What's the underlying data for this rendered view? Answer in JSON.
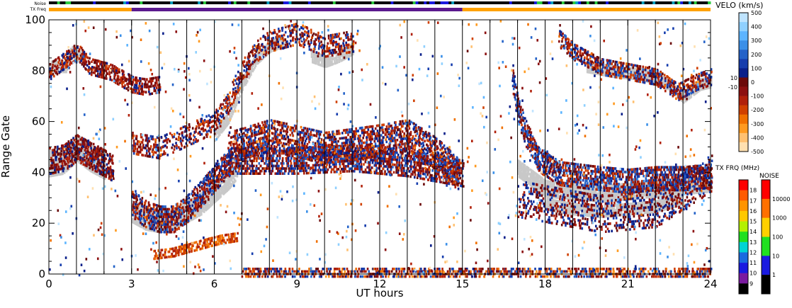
{
  "top_bars": {
    "noise_label": "Noise",
    "txfreq_label": "TX Freq",
    "noise_colors": [
      "#000000",
      "#1a1adf",
      "#00a0c0",
      "#2ecc40",
      "#000000"
    ],
    "txfreq_segments": [
      {
        "from": 0,
        "to": 3,
        "color": "#ffa200"
      },
      {
        "from": 3,
        "to": 15,
        "color": "#5b1a8e"
      },
      {
        "from": 15,
        "to": 24,
        "color": "#ffa200"
      }
    ]
  },
  "chart_data": {
    "type": "heatmap",
    "title": "",
    "xlabel": "UT hours",
    "ylabel": "Range Gate",
    "xlim": [
      0,
      24
    ],
    "ylim": [
      0,
      100
    ],
    "x_ticks": [
      "0",
      "3",
      "6",
      "9",
      "12",
      "15",
      "18",
      "21",
      "24"
    ],
    "y_ticks": [
      "0",
      "20",
      "40",
      "60",
      "80",
      "100"
    ],
    "scan_lines_ut": [
      1,
      2,
      3,
      4,
      5,
      6,
      7,
      8,
      9,
      10,
      11,
      12,
      13,
      14,
      15,
      16,
      17,
      18,
      19,
      20,
      21,
      22,
      23
    ],
    "ground_scatter_color": "#c8c8c8",
    "scatter_regions": [
      {
        "name": "band-a",
        "points": [
          [
            0,
            80
          ],
          [
            0.5,
            84
          ],
          [
            1.0,
            88
          ],
          [
            1.5,
            82
          ],
          [
            2.2,
            80
          ],
          [
            3.0,
            75
          ],
          [
            3.5,
            74
          ],
          [
            4.0,
            75
          ]
        ],
        "width": 6,
        "density": 0.5,
        "vel": [
          -200,
          80
        ]
      },
      {
        "name": "band-b",
        "points": [
          [
            0,
            45
          ],
          [
            0.5,
            46
          ],
          [
            1.0,
            50
          ],
          [
            1.5,
            47
          ],
          [
            2.0,
            44
          ],
          [
            2.3,
            42
          ]
        ],
        "width": 10,
        "density": 0.55,
        "vel": [
          -150,
          80
        ]
      },
      {
        "name": "band-c",
        "points": [
          [
            3.0,
            28
          ],
          [
            3.5,
            24
          ],
          [
            4.0,
            22
          ],
          [
            4.5,
            22
          ],
          [
            5.0,
            26
          ],
          [
            5.5,
            32
          ],
          [
            6.0,
            38
          ],
          [
            6.3,
            42
          ],
          [
            6.6,
            45
          ],
          [
            7.5,
            45
          ],
          [
            9,
            45
          ],
          [
            11,
            46
          ],
          [
            13,
            44
          ],
          [
            15,
            40
          ]
        ],
        "width": 10,
        "density": 0.5,
        "vel": [
          -200,
          200
        ]
      },
      {
        "name": "band-d",
        "points": [
          [
            3.0,
            52
          ],
          [
            4.0,
            50
          ],
          [
            5.0,
            55
          ],
          [
            6.0,
            60
          ],
          [
            6.5,
            68
          ],
          [
            7.0,
            80
          ],
          [
            7.5,
            88
          ],
          [
            8.0,
            92
          ],
          [
            9,
            95
          ],
          [
            10,
            90
          ],
          [
            11,
            92
          ]
        ],
        "width": 8,
        "density": 0.35,
        "vel": [
          -250,
          150
        ]
      },
      {
        "name": "band-e",
        "points": [
          [
            6.5,
            50
          ],
          [
            8,
            55
          ],
          [
            10,
            50
          ],
          [
            12,
            53
          ],
          [
            13,
            55
          ],
          [
            14,
            48
          ],
          [
            14.8,
            40
          ]
        ],
        "width": 12,
        "density": 0.45,
        "vel": [
          -250,
          200
        ]
      },
      {
        "name": "band-f",
        "points": [
          [
            3.8,
            8
          ],
          [
            4.5,
            9
          ],
          [
            5.5,
            12
          ],
          [
            6.2,
            14
          ],
          [
            6.8,
            15
          ]
        ],
        "width": 3,
        "density": 0.5,
        "vel": [
          -300,
          -100
        ]
      },
      {
        "name": "band-g",
        "points": [
          [
            7,
            1
          ],
          [
            10,
            1
          ],
          [
            13,
            1
          ],
          [
            15,
            1
          ],
          [
            18,
            1
          ],
          [
            21,
            1
          ],
          [
            24,
            1
          ]
        ],
        "width": 3,
        "density": 0.45,
        "vel": [
          -350,
          200
        ]
      },
      {
        "name": "band-h",
        "points": [
          [
            16.8,
            78
          ],
          [
            17.0,
            65
          ],
          [
            17.3,
            55
          ],
          [
            17.8,
            45
          ],
          [
            18.5,
            40
          ],
          [
            20,
            38
          ],
          [
            21,
            37
          ],
          [
            22,
            38
          ],
          [
            23,
            38
          ],
          [
            24,
            39
          ]
        ],
        "width": 9,
        "density": 0.55,
        "vel": [
          -200,
          250
        ]
      },
      {
        "name": "band-i",
        "points": [
          [
            18.5,
            93
          ],
          [
            19,
            88
          ],
          [
            20,
            82
          ],
          [
            21,
            80
          ],
          [
            22,
            78
          ],
          [
            22.8,
            72
          ],
          [
            23.5,
            76
          ],
          [
            24,
            78
          ]
        ],
        "width": 6,
        "density": 0.45,
        "vel": [
          -250,
          200
        ]
      },
      {
        "name": "band-j",
        "points": [
          [
            17,
            30
          ],
          [
            18,
            28
          ],
          [
            20,
            24
          ],
          [
            22,
            26
          ],
          [
            24,
            40
          ]
        ],
        "width": 14,
        "density": 0.25,
        "vel": [
          -150,
          150
        ]
      },
      {
        "name": "band-k",
        "points": [
          [
            14.6,
            45
          ],
          [
            14.8,
            38
          ],
          [
            15,
            32
          ],
          [
            14.6,
            28
          ]
        ],
        "width": 6,
        "density": 0.6,
        "vel": [
          -50,
          300
        ]
      }
    ],
    "ground_scatter_regions": [
      {
        "name": "gs-a",
        "points": [
          [
            0,
            82
          ],
          [
            0.6,
            82
          ],
          [
            0.8,
            88
          ],
          [
            1.2,
            85
          ]
        ],
        "width": 4
      },
      {
        "name": "gs-b",
        "points": [
          [
            0,
            44
          ],
          [
            0.5,
            45
          ],
          [
            1.0,
            50
          ],
          [
            1.5,
            46
          ],
          [
            2.0,
            43
          ]
        ],
        "width": 10
      },
      {
        "name": "gs-c",
        "points": [
          [
            3.0,
            25
          ],
          [
            3.5,
            22
          ],
          [
            4.0,
            21
          ],
          [
            4.5,
            22
          ],
          [
            5.0,
            25
          ],
          [
            5.5,
            28
          ],
          [
            6.0,
            33
          ],
          [
            6.5,
            38
          ],
          [
            6.8,
            42
          ]
        ],
        "width": 8
      },
      {
        "name": "gs-d",
        "points": [
          [
            6.0,
            55
          ],
          [
            6.5,
            62
          ],
          [
            7.0,
            75
          ],
          [
            7.5,
            85
          ],
          [
            8.0,
            90
          ],
          [
            8.5,
            92
          ]
        ],
        "width": 4
      },
      {
        "name": "gs-e",
        "points": [
          [
            9.5,
            86
          ],
          [
            10,
            84
          ],
          [
            10.5,
            86
          ],
          [
            11,
            89
          ]
        ],
        "width": 4
      },
      {
        "name": "gs-f",
        "points": [
          [
            17.0,
            42
          ],
          [
            17.5,
            38
          ],
          [
            18.0,
            34
          ],
          [
            19,
            33
          ],
          [
            20,
            32
          ],
          [
            21,
            33
          ],
          [
            22,
            34
          ],
          [
            23,
            35
          ],
          [
            24,
            36
          ]
        ],
        "width": 6
      },
      {
        "name": "gs-g",
        "points": [
          [
            19.5,
            82
          ],
          [
            20.5,
            80
          ],
          [
            21.5,
            79
          ],
          [
            22.5,
            75
          ],
          [
            23,
            70
          ],
          [
            23.6,
            75
          ],
          [
            24,
            76
          ]
        ],
        "width": 4
      },
      {
        "name": "gs-h",
        "points": [
          [
            18,
            28
          ],
          [
            19,
            26
          ],
          [
            20,
            25
          ],
          [
            21,
            26
          ],
          [
            22,
            27
          ],
          [
            23,
            30
          ]
        ],
        "width": 4
      }
    ],
    "velo_colorbar": {
      "title": "VELO (km/s)",
      "labels": [
        "500",
        "400",
        "300",
        "200",
        "100",
        "10",
        "0",
        "-10",
        "-100",
        "-200",
        "-300",
        "-400",
        "-500"
      ],
      "colors": [
        "#bfe4ff",
        "#8fd0ff",
        "#5cb4ff",
        "#3a8fe8",
        "#2462c8",
        "#163dad",
        "#0a1f8a",
        "#6b0a0a",
        "#8c1010",
        "#b0200a",
        "#d04000",
        "#f07000",
        "#ff9a20",
        "#ffc070",
        "#ffe0b0"
      ]
    },
    "txfrq_colorbar": {
      "title": "TX FRQ (MHz)",
      "labels": [
        "18",
        "17",
        "16",
        "15",
        "14",
        "13",
        "12",
        "11",
        "10",
        "9"
      ],
      "colors": [
        "#ff0000",
        "#ff5a00",
        "#ff9400",
        "#ffc800",
        "#b4f000",
        "#20e020",
        "#00d4d4",
        "#1a6ae0",
        "#1a1ae0",
        "#7a1aa0",
        "#000000"
      ]
    },
    "noise_colorbar": {
      "title": "NOISE",
      "labels": [
        "10000",
        "1000",
        "100",
        "10",
        "1"
      ],
      "colors": [
        "#ff0000",
        "#ff7000",
        "#ffd000",
        "#20e020",
        "#1a1ae0",
        "#000000"
      ]
    }
  }
}
